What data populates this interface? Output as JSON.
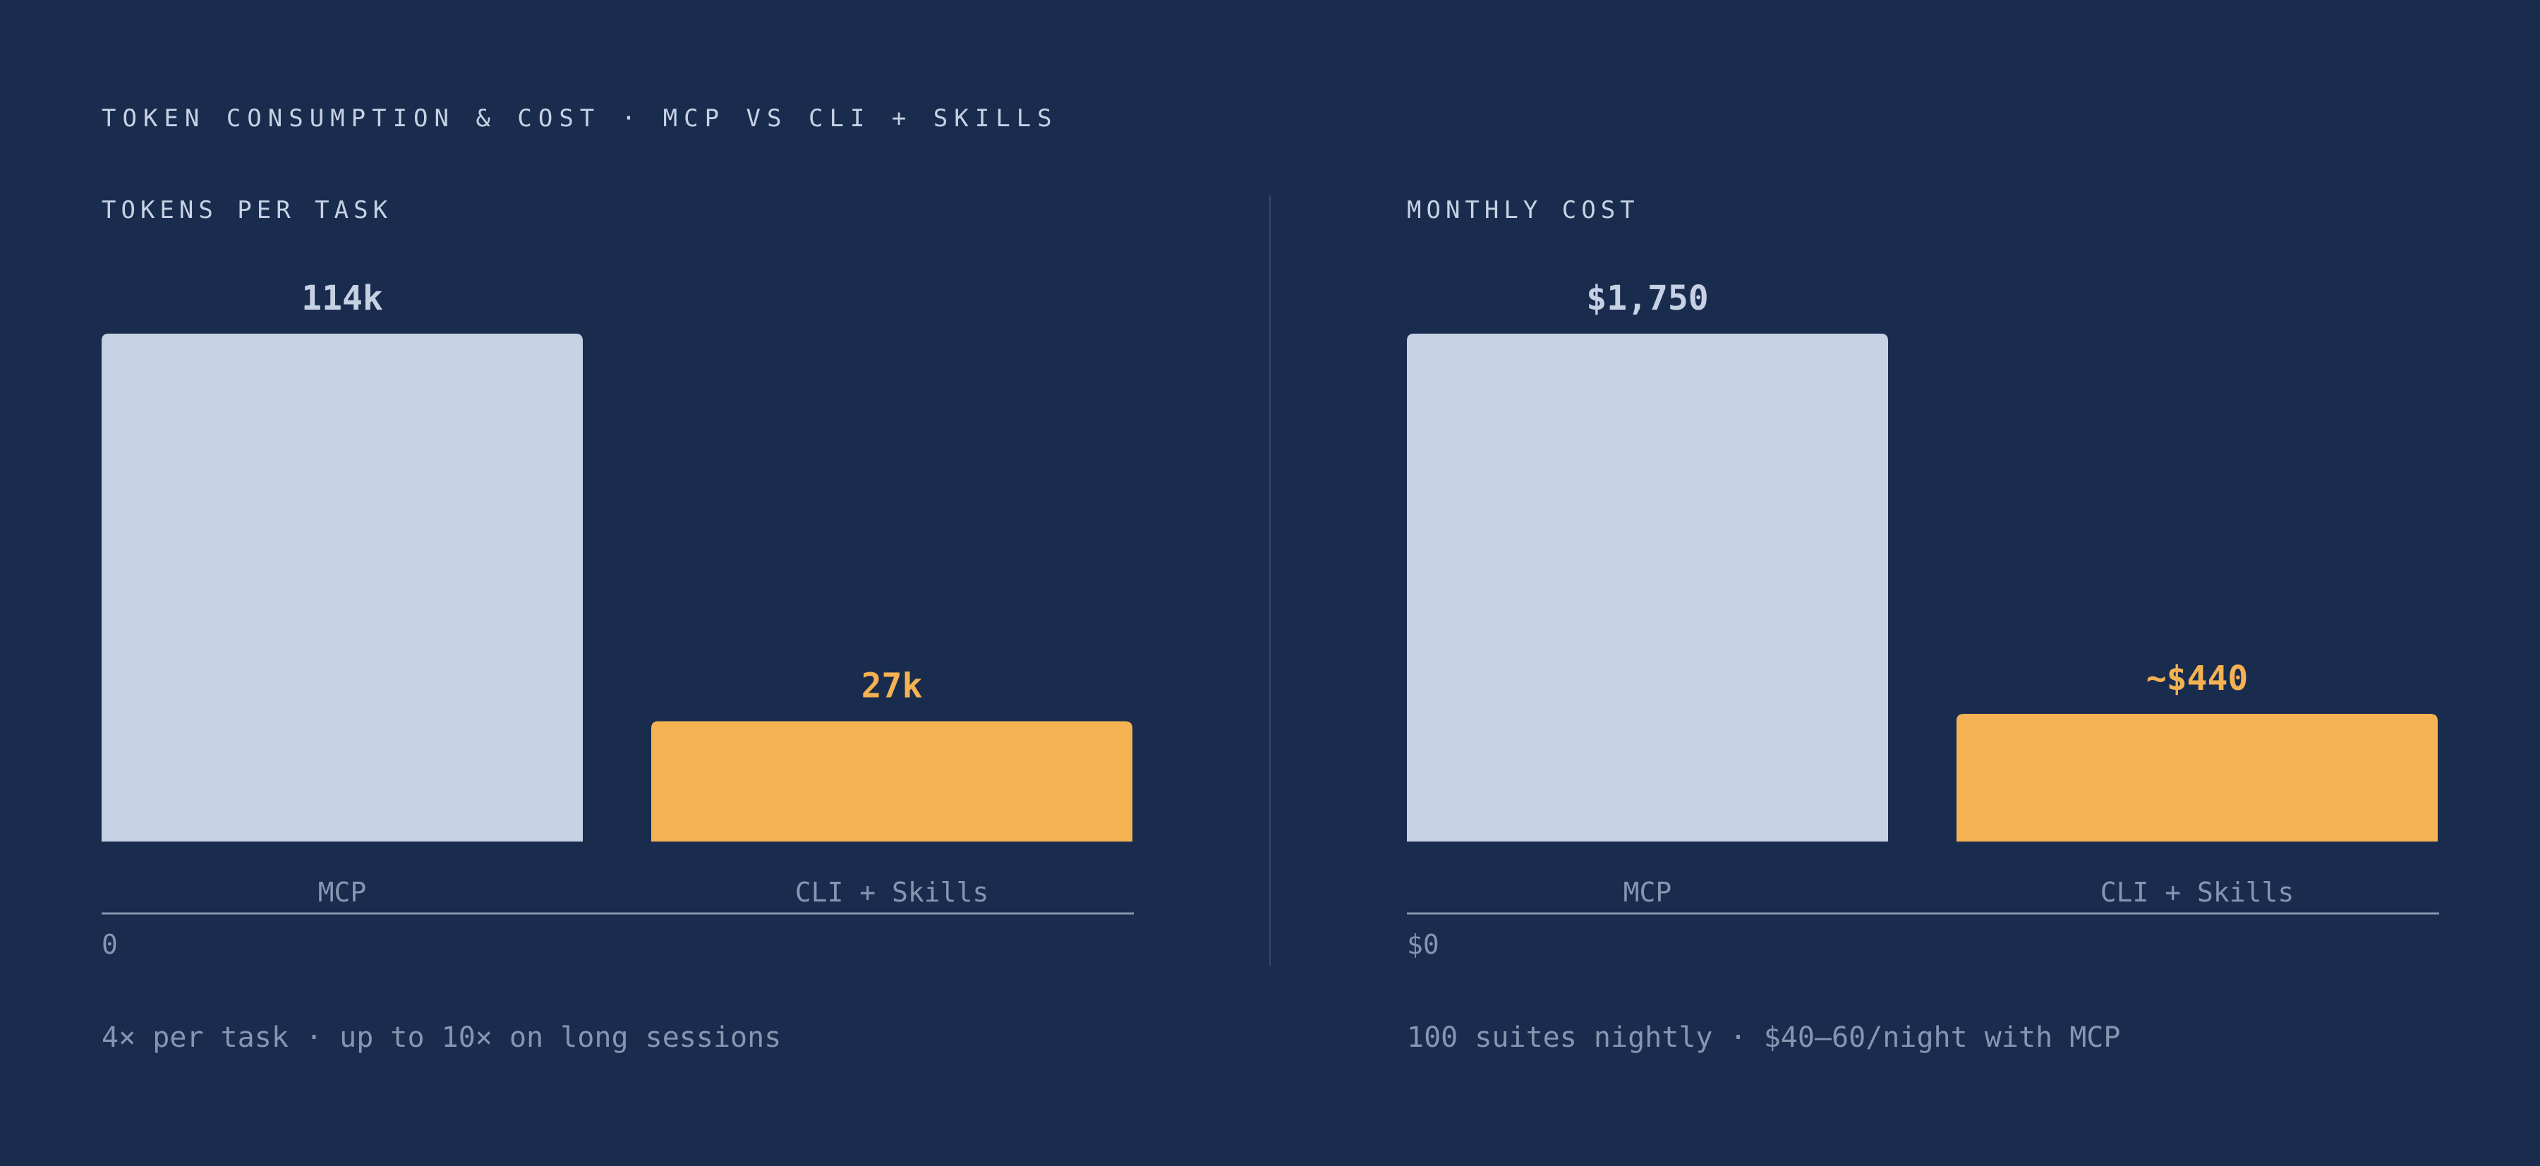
{
  "title": "TOKEN CONSUMPTION & COST · MCP VS CLI + SKILLS",
  "colors": {
    "background": "#1a2c4e",
    "mcp": "#c6d1e4",
    "cli": "#f4b252"
  },
  "chart_data": [
    {
      "type": "bar",
      "title": "TOKENS PER TASK",
      "categories": [
        "MCP",
        "CLI + Skills"
      ],
      "values": [
        114000,
        27000
      ],
      "value_labels": [
        "114k",
        "27k"
      ],
      "ylim": [
        0,
        114000
      ],
      "y_tick_labels": [
        "0"
      ],
      "grid": false,
      "footnote": "4× per task · up to 10× on long sessions"
    },
    {
      "type": "bar",
      "title": "MONTHLY COST",
      "categories": [
        "MCP",
        "CLI + Skills"
      ],
      "values": [
        1750,
        440
      ],
      "value_labels": [
        "$1,750",
        "~$440"
      ],
      "ylim": [
        0,
        1750
      ],
      "y_tick_labels": [
        "$0"
      ],
      "grid": false,
      "footnote": "100 suites nightly · $40–60/night with MCP"
    }
  ]
}
